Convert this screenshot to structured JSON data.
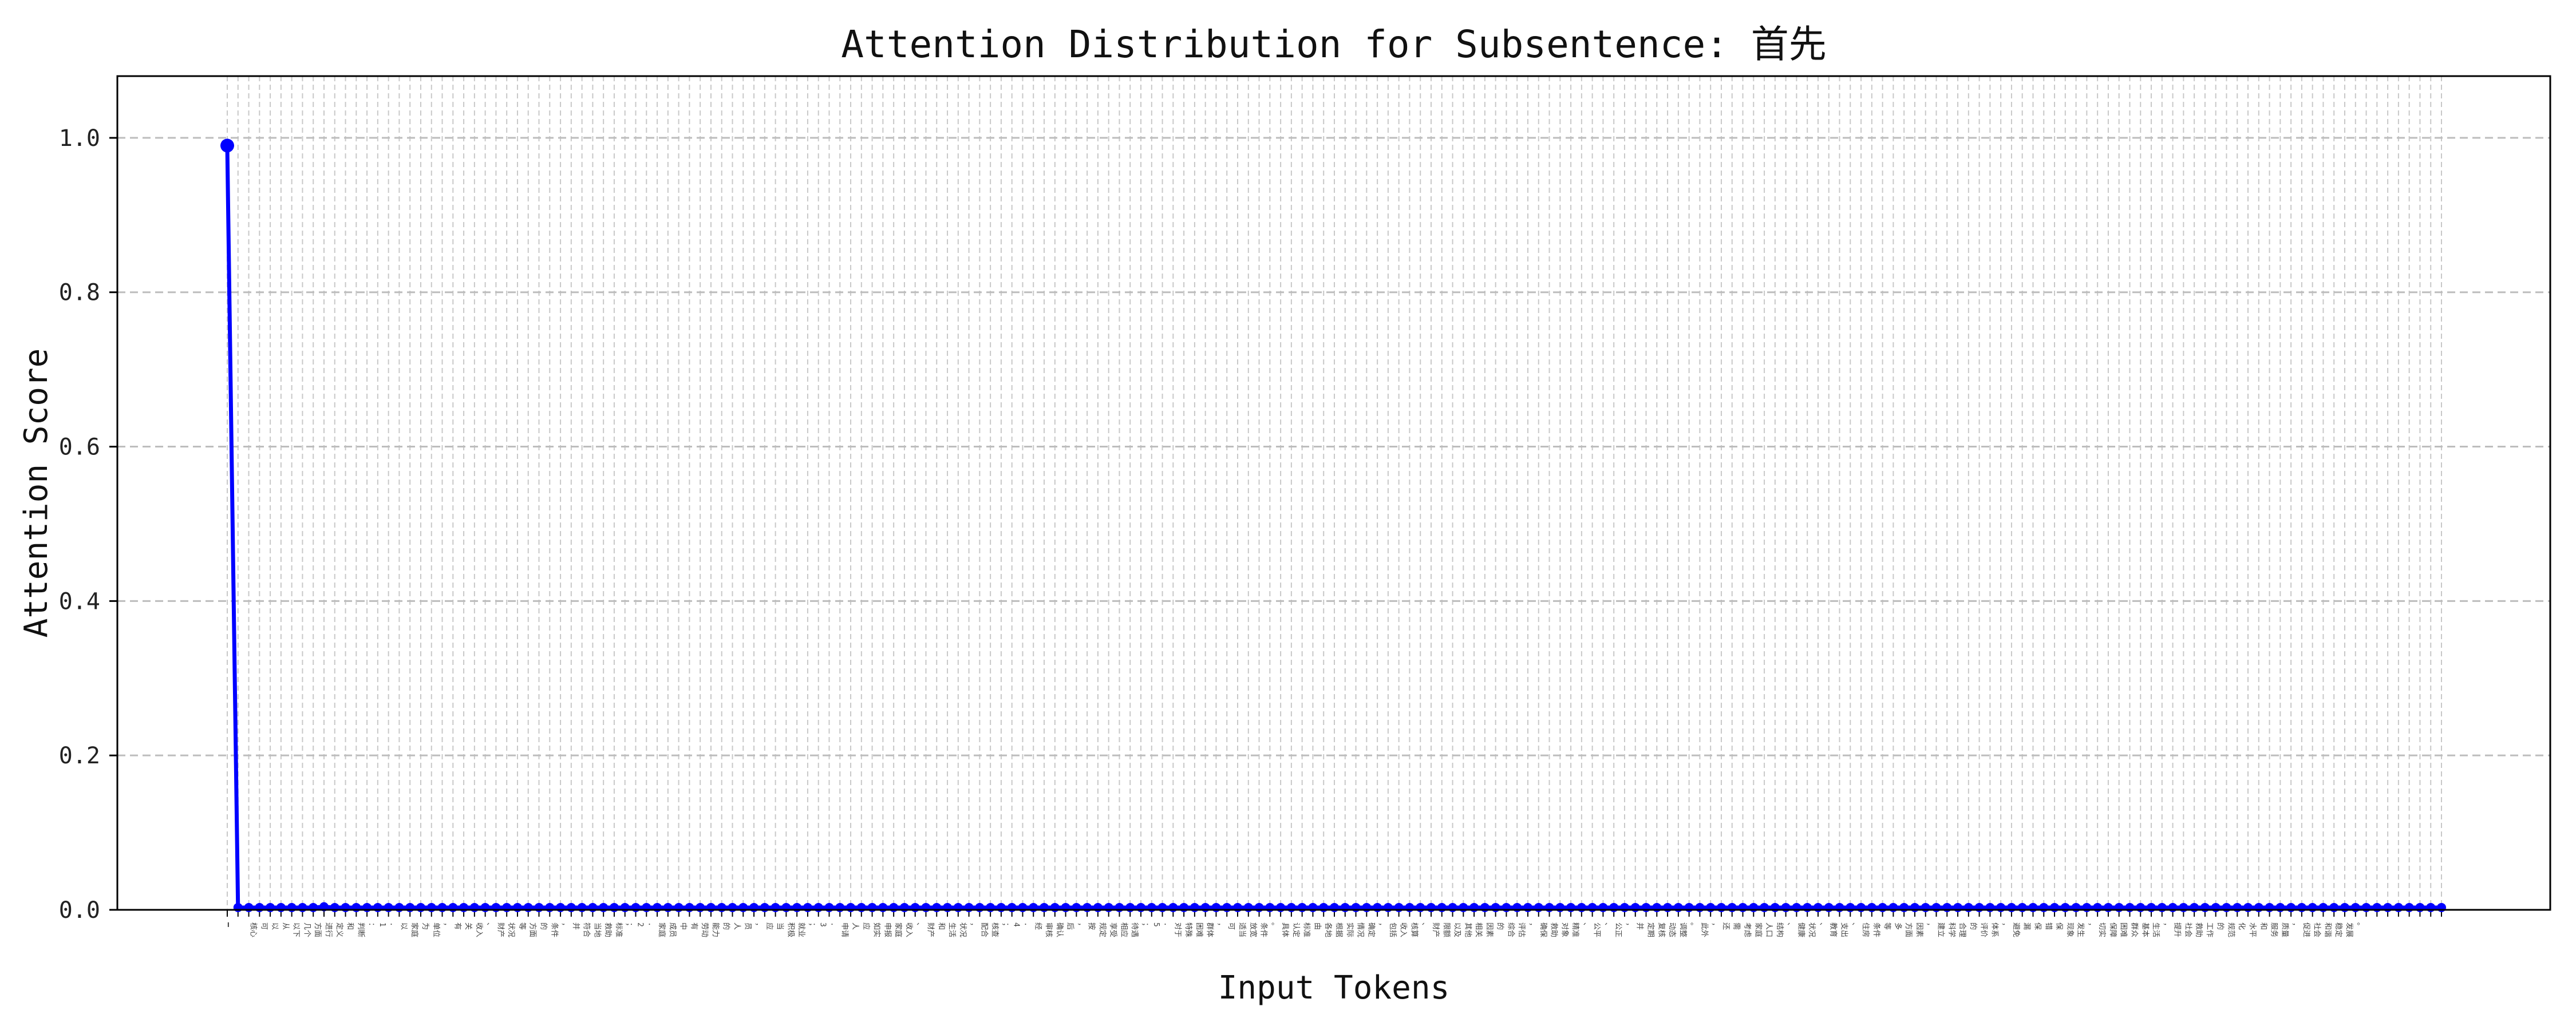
{
  "chart_data": {
    "type": "line",
    "title": "Attention Distribution for Subsentence: 首先",
    "xlabel": "Input Tokens",
    "ylabel": "Attention Score",
    "ylim": [
      0,
      1.08
    ],
    "y_ticks": [
      "0.0",
      "0.2",
      "0.4",
      "0.6",
      "0.8",
      "1.0"
    ],
    "grid": true,
    "legend": "none",
    "series_color": "#0000ff",
    "x_tick_labels": [
      "▁",
      "",
      "核心",
      "可",
      "以",
      "从",
      "以下",
      "几个",
      "方面",
      "进行",
      "定义",
      "和",
      "判断",
      "：",
      "1",
      "．",
      "以",
      "家庭",
      "为",
      "单位",
      "，",
      "有",
      "关",
      "收入",
      "、",
      "财产",
      "状况",
      "等",
      "方面",
      "的",
      "条件",
      "，",
      "并",
      "符合",
      "当地",
      "救助",
      "标准",
      "；",
      "2",
      "．",
      "家庭",
      "成员",
      "中",
      "有",
      "劳动",
      "能力",
      "的",
      "人",
      "员",
      "，",
      "应",
      "当",
      "积极",
      "就业",
      "；",
      "3",
      "．",
      "申请",
      "人",
      "应",
      "如实",
      "申报",
      "家庭",
      "收入",
      "、",
      "财产",
      "和",
      "生活",
      "状况",
      "，",
      "配合",
      "核查",
      "；",
      "4",
      "．",
      "经",
      "审核",
      "确认",
      "后",
      "，",
      "按",
      "规定",
      "享受",
      "相应",
      "待遇",
      "；",
      "5",
      "．",
      "对于",
      "特殊",
      "困难",
      "群体",
      "，",
      "可",
      "适当",
      "放宽",
      "条件",
      "。",
      "具体",
      "认定",
      "标准",
      "由",
      "各地",
      "根据",
      "实际",
      "情况",
      "确定",
      "，",
      "包括",
      "收入",
      "核算",
      "、",
      "财产",
      "限额",
      "以及",
      "其他",
      "相关",
      "因素",
      "的",
      "综合",
      "评估",
      "，",
      "确保",
      "救助",
      "对象",
      "精准",
      "、",
      "公平",
      "、",
      "公正",
      "，",
      "并",
      "定期",
      "复核",
      "动态",
      "调整",
      "。",
      "此外",
      "，",
      "还",
      "需",
      "考虑",
      "家庭",
      "人口",
      "结构",
      "、",
      "健康",
      "状况",
      "、",
      "教育",
      "支出",
      "、",
      "住房",
      "条件",
      "等",
      "多",
      "方面",
      "因素",
      "，",
      "建立",
      "科学",
      "合理",
      "的",
      "评价",
      "体系",
      "，",
      "避免",
      "漏",
      "保",
      "错",
      "保",
      "现象",
      "发生",
      "，",
      "切实",
      "保障",
      "困难",
      "群众",
      "基本",
      "生活",
      "，",
      "提升",
      "社会",
      "救助",
      "工作",
      "的",
      "规范",
      "化",
      "水平",
      "和",
      "服务",
      "质量",
      "，",
      "促进",
      "社会",
      "和谐",
      "稳定",
      "发展",
      "。"
    ],
    "values": [
      0.99,
      0.003,
      0.003,
      0.003,
      0.003,
      0.003,
      0.003,
      0.003,
      0.003,
      0.004,
      0.003,
      0.003,
      0.003,
      0.003,
      0.003,
      0.003,
      0.003,
      0.003,
      0.003,
      0.003,
      0.003,
      0.003,
      0.003,
      0.003,
      0.003,
      0.003,
      0.003,
      0.003,
      0.003,
      0.003,
      0.003,
      0.003,
      0.003,
      0.003,
      0.003,
      0.003,
      0.003,
      0.003,
      0.003,
      0.003,
      0.003,
      0.003,
      0.003,
      0.003,
      0.003,
      0.003,
      0.003,
      0.003,
      0.003,
      0.003,
      0.003,
      0.003,
      0.003,
      0.003,
      0.003,
      0.003,
      0.003,
      0.003,
      0.003,
      0.003,
      0.003,
      0.003,
      0.003,
      0.003,
      0.003,
      0.003,
      0.003,
      0.003,
      0.003,
      0.003,
      0.003,
      0.003,
      0.003,
      0.003,
      0.003,
      0.003,
      0.003,
      0.003,
      0.003,
      0.003,
      0.003,
      0.003,
      0.003,
      0.003,
      0.003,
      0.003,
      0.003,
      0.003,
      0.003,
      0.003,
      0.003,
      0.003,
      0.003,
      0.003,
      0.003,
      0.003,
      0.003,
      0.003,
      0.003,
      0.003,
      0.003,
      0.003,
      0.003,
      0.003,
      0.003,
      0.003,
      0.003,
      0.003,
      0.003,
      0.003,
      0.003,
      0.003,
      0.003,
      0.003,
      0.003,
      0.003,
      0.003,
      0.003,
      0.003,
      0.003,
      0.003,
      0.003,
      0.003,
      0.003,
      0.003,
      0.003,
      0.003,
      0.003,
      0.003,
      0.003,
      0.003,
      0.003,
      0.003,
      0.003,
      0.003,
      0.003,
      0.003,
      0.003,
      0.003,
      0.003,
      0.003,
      0.003,
      0.003,
      0.003,
      0.003,
      0.003,
      0.003,
      0.003,
      0.003,
      0.003,
      0.003,
      0.003,
      0.003,
      0.003,
      0.003,
      0.003,
      0.003,
      0.003,
      0.003,
      0.003,
      0.003,
      0.003,
      0.003,
      0.003,
      0.003,
      0.003,
      0.003,
      0.003,
      0.003,
      0.003,
      0.003,
      0.003,
      0.003,
      0.003,
      0.003,
      0.003,
      0.003,
      0.003,
      0.003,
      0.003,
      0.003,
      0.003,
      0.003,
      0.003,
      0.003,
      0.003,
      0.003,
      0.003,
      0.003,
      0.003,
      0.003,
      0.003,
      0.003,
      0.003,
      0.003,
      0.003,
      0.003,
      0.003,
      0.003,
      0.003,
      0.003,
      0.003,
      0.003,
      0.003,
      0.003,
      0.003,
      0.003
    ]
  }
}
